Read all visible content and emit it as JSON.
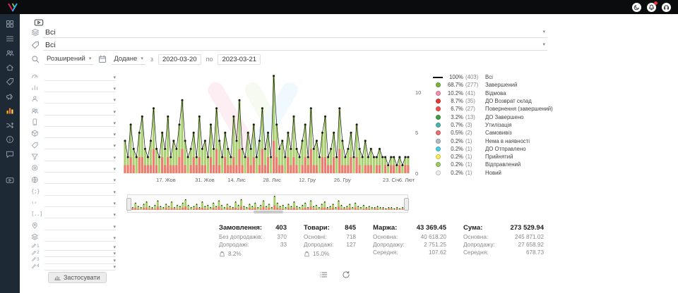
{
  "topbar": {
    "icons": [
      "moon-icon",
      "bell-icon",
      "headset-icon"
    ]
  },
  "sidebar": {
    "items": [
      "dashboard",
      "orders",
      "customers",
      "home",
      "products",
      "broadcast",
      "analytics",
      "integrations",
      "info",
      "support",
      "video"
    ],
    "active": "analytics"
  },
  "filters": {
    "value1": "Всі",
    "value2": "Всі",
    "advanced": "Розширений",
    "date_field": "Додане",
    "from_prefix": "з",
    "date_from": "2020-03-20",
    "to_prefix": "по",
    "date_to": "2023-03-21"
  },
  "filter_panel": {
    "apply_label": "Застосувати",
    "rows": [
      {
        "icon": "gauge"
      },
      {
        "icon": "bars"
      },
      {
        "icon": "user"
      },
      {
        "icon": "users"
      },
      {
        "icon": "phone"
      },
      {
        "icon": "cube"
      },
      {
        "icon": "tag"
      },
      {
        "icon": "funnel"
      },
      {
        "icon": "target"
      },
      {
        "icon": "globe"
      },
      {
        "icon": "braces",
        "glyph": "{;}"
      },
      {
        "icon": "angle",
        "glyph": "‹›"
      },
      {
        "icon": "sqbr",
        "glyph": "[..]"
      },
      {
        "icon": "pin"
      },
      {
        "icon": "layers"
      }
    ],
    "pencil_rows": [
      {
        "num": "1"
      },
      {
        "num": "2"
      },
      {
        "num": "3"
      },
      {
        "num": "4"
      }
    ]
  },
  "chart_data": {
    "type": "bar",
    "ylim": [
      0,
      12.5
    ],
    "yticks": [
      0,
      5,
      10
    ],
    "grid": false,
    "legend_position": "right",
    "xticks": [
      {
        "label": "17. Жов",
        "p": 0.148
      },
      {
        "label": "31. Жов",
        "p": 0.284
      },
      {
        "label": "14. Лис",
        "p": 0.395
      },
      {
        "label": "28. Лис",
        "p": 0.519
      },
      {
        "label": "12. Гру",
        "p": 0.642
      },
      {
        "label": "26. Гру",
        "p": 0.765
      },
      {
        "label": "23. Січ",
        "p": 0.935
      },
      {
        "label": "6. Лют",
        "p": 0.99
      }
    ],
    "series": [
      {
        "name": "Всі",
        "values": [
          4,
          2,
          6,
          3,
          2,
          5,
          7,
          3,
          2,
          4,
          8,
          3,
          2,
          5,
          3,
          7,
          2,
          4,
          3,
          6,
          9,
          4,
          2,
          3,
          5,
          2,
          7,
          3,
          4,
          2,
          6,
          3,
          8,
          4,
          2,
          5,
          3,
          2,
          7,
          4,
          9,
          3,
          2,
          5,
          3,
          6,
          2,
          4,
          8,
          3,
          5,
          2,
          12,
          6,
          3,
          4,
          2,
          5,
          3,
          7,
          3,
          2,
          4,
          6,
          2,
          8,
          3,
          4,
          2,
          5,
          7,
          2,
          3,
          5,
          2,
          8,
          4,
          2,
          3,
          5,
          2,
          6,
          3,
          2,
          4,
          2,
          3,
          2,
          2,
          3,
          2,
          2,
          1,
          2,
          2,
          1,
          2,
          1,
          2,
          2
        ]
      },
      {
        "name": "Відмова / Повернення",
        "values": [
          1,
          1,
          2,
          1,
          0,
          2,
          2,
          1,
          1,
          1,
          3,
          1,
          0,
          2,
          1,
          2,
          1,
          1,
          1,
          2,
          3,
          1,
          0,
          1,
          2,
          1,
          2,
          1,
          1,
          0,
          2,
          1,
          3,
          1,
          0,
          2,
          1,
          1,
          2,
          1,
          3,
          1,
          0,
          2,
          1,
          2,
          0,
          1,
          3,
          1,
          2,
          0,
          4,
          2,
          1,
          1,
          0,
          2,
          1,
          2,
          1,
          0,
          1,
          2,
          1,
          3,
          1,
          1,
          0,
          2,
          2,
          1,
          1,
          2,
          0,
          3,
          1,
          1,
          1,
          2,
          0,
          2,
          1,
          0,
          1,
          1,
          1,
          0,
          1,
          1,
          0,
          1,
          0,
          1,
          1,
          0,
          1,
          0,
          1,
          1
        ]
      }
    ]
  },
  "legend": [
    {
      "marker": "line",
      "color": "#111111",
      "pct": "100%",
      "count": "(403)",
      "label": "Всі"
    },
    {
      "color": "#7cb342",
      "pct": "68.7%",
      "count": "(277)",
      "label": "Завершений"
    },
    {
      "color": "#f48fb1",
      "pct": "10.2%",
      "count": "(41)",
      "label": "Відмова"
    },
    {
      "color": "#e53935",
      "pct": "8.7%",
      "count": "(35)",
      "label": "ДО Возврат склад"
    },
    {
      "color": "#ef5350",
      "pct": "6.7%",
      "count": "(27)",
      "label": "Повернення (завершений)"
    },
    {
      "color": "#43a047",
      "pct": "3.2%",
      "count": "(13)",
      "label": "ДО Завершено"
    },
    {
      "color": "#4db6ac",
      "pct": "0.7%",
      "count": "(3)",
      "label": "Утилізація"
    },
    {
      "color": "#e57373",
      "pct": "0.5%",
      "count": "(2)",
      "label": "Самовивіз"
    },
    {
      "color": "#b0bec5",
      "pct": "0.2%",
      "count": "(1)",
      "label": "Нема в наявності"
    },
    {
      "color": "#4dd0e1",
      "pct": "0.2%",
      "count": "(1)",
      "label": "ДО Отправлено"
    },
    {
      "color": "#ffee58",
      "pct": "0.2%",
      "count": "(1)",
      "label": "Прийнятий"
    },
    {
      "color": "#9ccc65",
      "pct": "0.2%",
      "count": "(1)",
      "label": "Відправлений"
    },
    {
      "color": "#eceff1",
      "pct": "0.2%",
      "count": "(1)",
      "label": "Новий"
    }
  ],
  "stats": [
    {
      "label": "Замовлення:",
      "value": "403",
      "rows": [
        [
          "Без допродажів:",
          "370"
        ],
        [
          "Допродажі:",
          "33"
        ]
      ],
      "pct": "8.2%"
    },
    {
      "label": "Товари:",
      "value": "845",
      "rows": [
        [
          "Основні:",
          "718"
        ],
        [
          "Допродажі:",
          "127"
        ]
      ],
      "pct": "15.0%"
    },
    {
      "label": "Маржа:",
      "value": "43 369.45",
      "rows": [
        [
          "Основна:",
          "40 618.20"
        ],
        [
          "Допродажу:",
          "2 751.25"
        ],
        [
          "Середня:",
          "107.62"
        ]
      ]
    },
    {
      "label": "Сума:",
      "value": "273 529.94",
      "rows": [
        [
          "Основна:",
          "245 871.02"
        ],
        [
          "Допродажу:",
          "27 658.92"
        ],
        [
          "Середня:",
          "678.73"
        ]
      ]
    }
  ],
  "colors": {
    "bar_green": "#a8d06d",
    "bar_red": "#ee7a70",
    "line": "#1a1a1a",
    "accent_logo": [
      "#e91e63",
      "#8bc34a",
      "#29b6f6"
    ]
  }
}
